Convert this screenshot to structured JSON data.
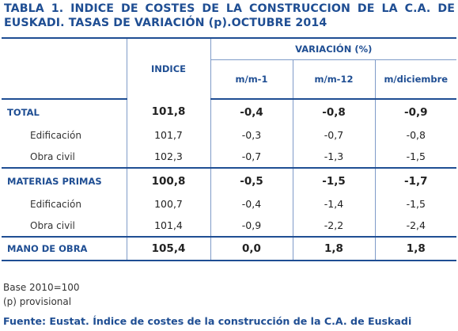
{
  "title": {
    "line1": "TABLA 1. INDICE DE COSTES DE LA CONSTRUCCION DE LA C.A. DE",
    "line2": "EUSKADI. TASAS DE VARIACIÓN (p).OCTUBRE 2014"
  },
  "headers": {
    "indice": "INDICE",
    "variacion": "VARIACIÓN (%)",
    "mm1": "m/m-1",
    "mm12": "m/m-12",
    "mdic": "m/diciembre"
  },
  "rows": [
    {
      "label": "TOTAL",
      "indice": "101,8",
      "mm1": "-0,4",
      "mm12": "-0,8",
      "mdic": "-0,9"
    },
    {
      "label": "Edificación",
      "indice": "101,7",
      "mm1": "-0,3",
      "mm12": "-0,7",
      "mdic": "-0,8"
    },
    {
      "label": "Obra civil",
      "indice": "102,3",
      "mm1": "-0,7",
      "mm12": "-1,3",
      "mdic": "-1,5"
    },
    {
      "label": "MATERIAS PRIMAS",
      "indice": "100,8",
      "mm1": "-0,5",
      "mm12": "-1,5",
      "mdic": "-1,7"
    },
    {
      "label": "Edificación",
      "indice": "100,7",
      "mm1": "-0,4",
      "mm12": "-1,4",
      "mdic": "-1,5"
    },
    {
      "label": "Obra civil",
      "indice": "101,4",
      "mm1": "-0,9",
      "mm12": "-2,2",
      "mdic": "-2,4"
    },
    {
      "label": "MANO DE OBRA",
      "indice": "105,4",
      "mm1": "0,0",
      "mm12": "1,8",
      "mdic": "1,8"
    }
  ],
  "notes": {
    "base": "Base 2010=100",
    "provisional": "(p) provisional"
  },
  "source": "Fuente: Eustat. Índice de costes de la construcción de la C.A. de Euskadi",
  "colors": {
    "accent": "#1f4e93",
    "rule": "#7f9bc8"
  }
}
